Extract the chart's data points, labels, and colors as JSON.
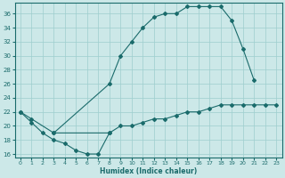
{
  "xlabel": "Humidex (Indice chaleur)",
  "bg_color": "#cce8e8",
  "line_color": "#1a6b6b",
  "grid_color": "#9ecece",
  "xlim": [
    -0.5,
    23.5
  ],
  "ylim": [
    15.5,
    37.5
  ],
  "xticks": [
    0,
    1,
    2,
    3,
    4,
    5,
    6,
    7,
    8,
    9,
    10,
    11,
    12,
    13,
    14,
    15,
    16,
    17,
    18,
    19,
    20,
    21,
    22,
    23
  ],
  "yticks": [
    16,
    18,
    20,
    22,
    24,
    26,
    28,
    30,
    32,
    34,
    36
  ],
  "line1_x": [
    0,
    1,
    2,
    3,
    4,
    5,
    6,
    7,
    8
  ],
  "line1_y": [
    22,
    20.5,
    19,
    18,
    17.5,
    16.5,
    16,
    16,
    19
  ],
  "line2_x": [
    0,
    1,
    3,
    8,
    9,
    10,
    11,
    12,
    13,
    14,
    15,
    16,
    17,
    18,
    19,
    20,
    21,
    22,
    23
  ],
  "line2_y": [
    22,
    21,
    19,
    26,
    30,
    32,
    34,
    35.5,
    36,
    36,
    37,
    37,
    37,
    37,
    35,
    31,
    26.5,
    null,
    null
  ],
  "line3_x": [
    3,
    8,
    9,
    10,
    11,
    12,
    13,
    14,
    15,
    16,
    17,
    18,
    19,
    20,
    21,
    22,
    23
  ],
  "line3_y": [
    19,
    19,
    20,
    20,
    20.5,
    21,
    21,
    21.5,
    22,
    22,
    22.5,
    23,
    23,
    23,
    23,
    23,
    23
  ]
}
